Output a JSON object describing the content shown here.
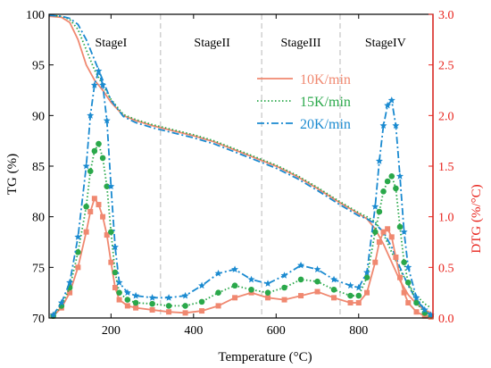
{
  "chart_data": {
    "type": "line",
    "xlabel": "Temperature (°C)",
    "ylabel_left": "TG (%)",
    "ylabel_right": "DTG (%/°C)",
    "xlim": [
      50,
      980
    ],
    "ylim_left": [
      70,
      100
    ],
    "ylim_right": [
      0,
      3.0
    ],
    "x_ticks": [
      200,
      400,
      600,
      800
    ],
    "y_ticks_left": [
      70,
      75,
      80,
      85,
      90,
      95,
      100
    ],
    "y_ticks_right": [
      "0.0",
      "0.5",
      "1.0",
      "1.5",
      "2.0",
      "2.5",
      "3.0"
    ],
    "colors": {
      "left_axis": "#000000",
      "right_axis": "#e8221b",
      "stage_divider": "#b8b8b8"
    },
    "stages": [
      {
        "label": "StageI",
        "x": 200
      },
      {
        "label": "StageII",
        "x": 445
      },
      {
        "label": "StageIII",
        "x": 660
      },
      {
        "label": "StageIV",
        "x": 865
      }
    ],
    "stage_boundaries": [
      320,
      565,
      755
    ],
    "legend": {
      "position": "top-right",
      "entries": [
        {
          "label": "10K/min",
          "color": "#f08870",
          "dash": "solid"
        },
        {
          "label": "15K/min",
          "color": "#2aa84a",
          "dash": "dotted"
        },
        {
          "label": "20K/min",
          "color": "#1a8ad0",
          "dash": "dashdot"
        }
      ]
    },
    "series": [
      {
        "name": "10K/min",
        "axis": "left",
        "kind": "TG",
        "color": "#f08870",
        "dash": "solid",
        "x": [
          50,
          80,
          100,
          120,
          140,
          160,
          180,
          200,
          230,
          260,
          300,
          350,
          400,
          450,
          500,
          550,
          600,
          650,
          700,
          750,
          800,
          820,
          840,
          860,
          880,
          900,
          920,
          940,
          960,
          975
        ],
        "y": [
          99.8,
          99.7,
          99.2,
          97.5,
          95.0,
          93.5,
          92.5,
          91.3,
          90.0,
          89.5,
          89.0,
          88.5,
          88.0,
          87.4,
          86.6,
          85.8,
          85.0,
          84.0,
          82.8,
          81.5,
          80.3,
          79.8,
          78.8,
          77.3,
          75.5,
          73.7,
          72.3,
          71.4,
          70.8,
          70.5
        ]
      },
      {
        "name": "15K/min",
        "axis": "left",
        "kind": "TG",
        "color": "#2aa84a",
        "dash": "dotted",
        "x": [
          50,
          80,
          100,
          120,
          140,
          160,
          180,
          200,
          230,
          260,
          300,
          350,
          400,
          450,
          500,
          550,
          600,
          650,
          700,
          750,
          800,
          820,
          840,
          860,
          880,
          900,
          920,
          940,
          960,
          975
        ],
        "y": [
          99.9,
          99.8,
          99.5,
          98.5,
          96.5,
          94.5,
          93.0,
          91.6,
          90.1,
          89.6,
          89.1,
          88.6,
          88.1,
          87.5,
          86.7,
          85.9,
          85.1,
          84.1,
          82.9,
          81.6,
          80.4,
          80.0,
          79.5,
          78.3,
          76.5,
          74.8,
          73.3,
          72.2,
          71.4,
          71.0
        ]
      },
      {
        "name": "20K/min",
        "axis": "left",
        "kind": "TG",
        "color": "#1a8ad0",
        "dash": "dashdot",
        "x": [
          50,
          80,
          100,
          120,
          140,
          160,
          180,
          200,
          230,
          260,
          300,
          350,
          400,
          450,
          500,
          550,
          600,
          650,
          700,
          750,
          800,
          820,
          840,
          860,
          880,
          900,
          920,
          940,
          960,
          975
        ],
        "y": [
          99.9,
          99.8,
          99.6,
          99.0,
          97.5,
          95.5,
          93.5,
          91.5,
          89.9,
          89.3,
          88.8,
          88.3,
          87.8,
          87.2,
          86.4,
          85.6,
          84.8,
          83.8,
          82.6,
          81.3,
          80.1,
          79.8,
          79.3,
          78.5,
          77.0,
          75.0,
          73.2,
          71.8,
          70.8,
          70.3
        ]
      },
      {
        "name": "10K/min",
        "axis": "right",
        "kind": "DTG",
        "color": "#f08870",
        "dash": "solid",
        "marker": "square",
        "x": [
          60,
          80,
          100,
          120,
          140,
          150,
          160,
          170,
          180,
          190,
          200,
          210,
          220,
          240,
          260,
          300,
          340,
          380,
          420,
          460,
          500,
          540,
          580,
          620,
          660,
          700,
          740,
          780,
          800,
          820,
          840,
          850,
          860,
          870,
          880,
          890,
          900,
          910,
          920,
          940,
          960,
          975
        ],
        "y": [
          0.02,
          0.1,
          0.25,
          0.5,
          0.85,
          1.05,
          1.18,
          1.12,
          1.0,
          0.82,
          0.55,
          0.3,
          0.18,
          0.12,
          0.1,
          0.08,
          0.06,
          0.05,
          0.07,
          0.12,
          0.2,
          0.25,
          0.2,
          0.18,
          0.22,
          0.26,
          0.2,
          0.15,
          0.15,
          0.25,
          0.55,
          0.75,
          0.85,
          0.88,
          0.8,
          0.6,
          0.4,
          0.25,
          0.15,
          0.06,
          0.02,
          0.01
        ]
      },
      {
        "name": "15K/min",
        "axis": "right",
        "kind": "DTG",
        "color": "#2aa84a",
        "dash": "dotted",
        "marker": "circle",
        "x": [
          60,
          80,
          100,
          120,
          140,
          150,
          160,
          170,
          180,
          190,
          200,
          210,
          220,
          240,
          260,
          300,
          340,
          380,
          420,
          460,
          500,
          540,
          580,
          620,
          660,
          700,
          740,
          780,
          800,
          820,
          840,
          850,
          860,
          870,
          880,
          890,
          900,
          910,
          920,
          940,
          960,
          975
        ],
        "y": [
          0.02,
          0.12,
          0.3,
          0.65,
          1.1,
          1.45,
          1.65,
          1.72,
          1.58,
          1.3,
          0.85,
          0.45,
          0.25,
          0.18,
          0.15,
          0.14,
          0.12,
          0.12,
          0.16,
          0.25,
          0.32,
          0.28,
          0.25,
          0.3,
          0.38,
          0.36,
          0.28,
          0.22,
          0.22,
          0.4,
          0.85,
          1.05,
          1.25,
          1.35,
          1.4,
          1.28,
          0.9,
          0.55,
          0.35,
          0.15,
          0.05,
          0.02
        ]
      },
      {
        "name": "20K/min",
        "axis": "right",
        "kind": "DTG",
        "color": "#1a8ad0",
        "dash": "dashdot",
        "marker": "star",
        "x": [
          60,
          80,
          100,
          120,
          140,
          150,
          160,
          170,
          180,
          190,
          200,
          210,
          220,
          240,
          260,
          300,
          340,
          380,
          420,
          460,
          500,
          540,
          580,
          620,
          660,
          700,
          740,
          780,
          800,
          820,
          840,
          850,
          860,
          870,
          880,
          890,
          900,
          910,
          920,
          940,
          960,
          975
        ],
        "y": [
          0.03,
          0.15,
          0.35,
          0.8,
          1.5,
          2.0,
          2.3,
          2.44,
          2.3,
          1.95,
          1.3,
          0.7,
          0.35,
          0.25,
          0.22,
          0.2,
          0.2,
          0.22,
          0.32,
          0.44,
          0.48,
          0.38,
          0.34,
          0.42,
          0.52,
          0.48,
          0.38,
          0.32,
          0.3,
          0.45,
          1.1,
          1.55,
          1.9,
          2.1,
          2.15,
          1.9,
          1.4,
          0.85,
          0.5,
          0.2,
          0.08,
          0.03
        ]
      }
    ]
  }
}
